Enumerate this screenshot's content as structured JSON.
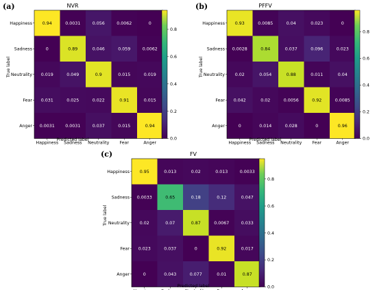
{
  "colormap": "viridis",
  "chart_data": [
    {
      "type": "heatmap",
      "panel": "(a)",
      "title": "NVR",
      "xlabel": "Predicted label",
      "ylabel": "True label",
      "rows": [
        "Happiness",
        "Sadness",
        "Neutrality",
        "Fear",
        "Anger"
      ],
      "cols": [
        "Happiness",
        "Sadness",
        "Neutrality",
        "Fear",
        "Anger"
      ],
      "values": [
        [
          0.94,
          0.0031,
          0.056,
          0.0062,
          0
        ],
        [
          0,
          0.89,
          0.046,
          0.059,
          0.0062
        ],
        [
          0.019,
          0.049,
          0.9,
          0.015,
          0.019
        ],
        [
          0.031,
          0.025,
          0.022,
          0.91,
          0.015
        ],
        [
          0.0031,
          0.0031,
          0.037,
          0.015,
          0.94
        ]
      ],
      "labels": [
        [
          "0.94",
          "0.0031",
          "0.056",
          "0.0062",
          "0"
        ],
        [
          "0",
          "0.89",
          "0.046",
          "0.059",
          "0.0062"
        ],
        [
          "0.019",
          "0.049",
          "0.9",
          "0.015",
          "0.019"
        ],
        [
          "0.031",
          "0.025",
          "0.022",
          "0.91",
          "0.015"
        ],
        [
          "0.0031",
          "0.0031",
          "0.037",
          "0.015",
          "0.94"
        ]
      ],
      "vmin": 0,
      "vmax": 0.94,
      "colorbar_ticks": [
        "0.8",
        "0.6",
        "0.4",
        "0.2",
        "0.0"
      ],
      "colorbar_values": [
        0.8,
        0.6,
        0.4,
        0.2,
        0.0
      ]
    },
    {
      "type": "heatmap",
      "panel": "(b)",
      "title": "PFFV",
      "xlabel": "Predicted label",
      "ylabel": "True label",
      "rows": [
        "Happiness",
        "Sadness",
        "Neutrality",
        "Fear",
        "Anger"
      ],
      "cols": [
        "Happiness",
        "Sadness",
        "Neutrality",
        "Fear",
        "Anger"
      ],
      "values": [
        [
          0.93,
          0.0085,
          0.04,
          0.023,
          0
        ],
        [
          0.0028,
          0.84,
          0.037,
          0.096,
          0.023
        ],
        [
          0.02,
          0.054,
          0.88,
          0.011,
          0.04
        ],
        [
          0.042,
          0.02,
          0.0056,
          0.92,
          0.0085
        ],
        [
          0,
          0.014,
          0.028,
          0,
          0.96
        ]
      ],
      "labels": [
        [
          "0.93",
          "0.0085",
          "0.04",
          "0.023",
          "0"
        ],
        [
          "0.0028",
          "0.84",
          "0.037",
          "0.096",
          "0.023"
        ],
        [
          "0.02",
          "0.054",
          "0.88",
          "0.011",
          "0.04"
        ],
        [
          "0.042",
          "0.02",
          "0.0056",
          "0.92",
          "0.0085"
        ],
        [
          "0",
          "0.014",
          "0.028",
          "0",
          "0.96"
        ]
      ],
      "vmin": 0,
      "vmax": 0.96,
      "colorbar_ticks": [
        "0.8",
        "0.6",
        "0.4",
        "0.2",
        "0.0"
      ],
      "colorbar_values": [
        0.8,
        0.6,
        0.4,
        0.2,
        0.0
      ]
    },
    {
      "type": "heatmap",
      "panel": "(c)",
      "title": "FV",
      "xlabel": "Predicted label",
      "ylabel": "True label",
      "rows": [
        "Happiness",
        "Sadness",
        "Neutrality",
        "Fear",
        "Anger"
      ],
      "cols": [
        "Happiness",
        "Sadness",
        "Neutrality",
        "Fear",
        "Anger"
      ],
      "values": [
        [
          0.95,
          0.013,
          0.02,
          0.013,
          0.0033
        ],
        [
          0.0033,
          0.65,
          0.18,
          0.12,
          0.047
        ],
        [
          0.02,
          0.07,
          0.87,
          0.0067,
          0.033
        ],
        [
          0.023,
          0.037,
          0,
          0.92,
          0.017
        ],
        [
          0,
          0.043,
          0.077,
          0.01,
          0.87
        ]
      ],
      "labels": [
        [
          "0.95",
          "0.013",
          "0.02",
          "0.013",
          "0.0033"
        ],
        [
          "0.0033",
          "0.65",
          "0.18",
          "0.12",
          "0.047"
        ],
        [
          "0.02",
          "0.07",
          "0.87",
          "0.0067",
          "0.033"
        ],
        [
          "0.023",
          "0.037",
          "0",
          "0.92",
          "0.017"
        ],
        [
          "0",
          "0.043",
          "0.077",
          "0.01",
          "0.87"
        ]
      ],
      "vmin": 0,
      "vmax": 0.95,
      "colorbar_ticks": [
        "0.8",
        "0.6",
        "0.4",
        "0.2",
        "0.0"
      ],
      "colorbar_values": [
        0.8,
        0.6,
        0.4,
        0.2,
        0.0
      ]
    }
  ]
}
